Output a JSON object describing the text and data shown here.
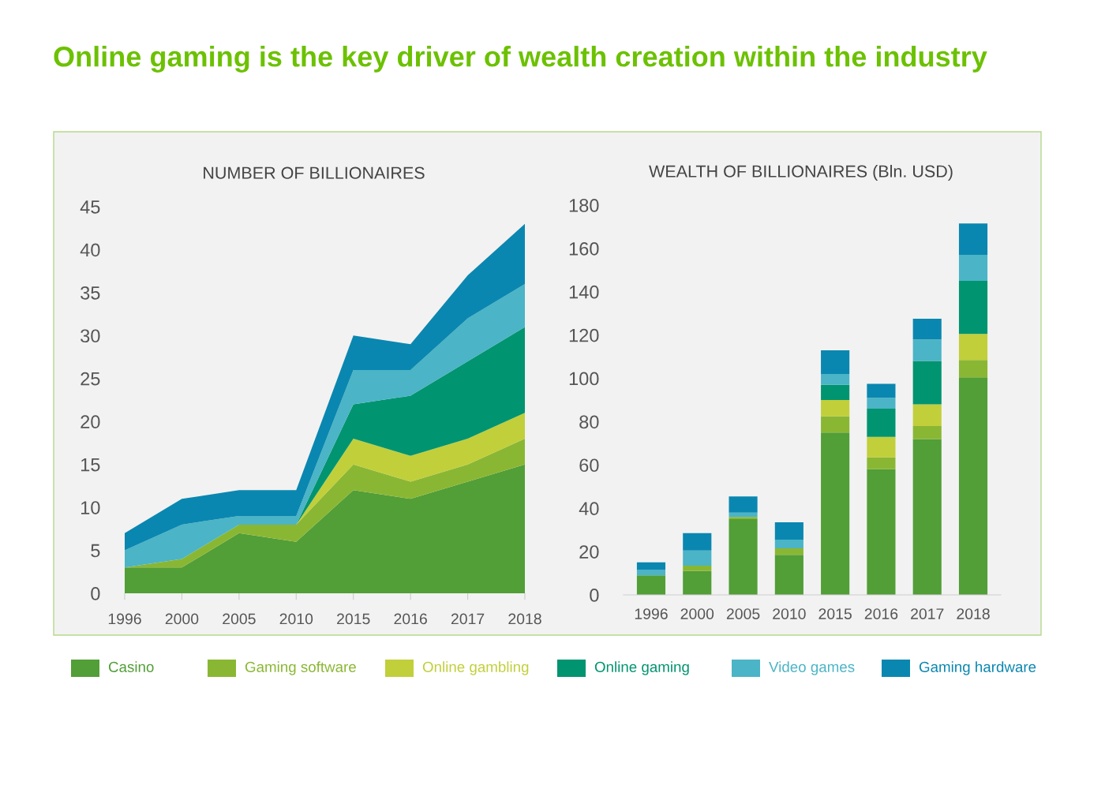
{
  "chart_data": [
    {
      "type": "area",
      "title": "NUMBER OF BILLIONAIRES",
      "stacked": true,
      "categories": [
        "1996",
        "2000",
        "2005",
        "2010",
        "2015",
        "2016",
        "2017",
        "2018"
      ],
      "ylim": [
        0,
        45
      ],
      "yticks": [
        0,
        5,
        10,
        15,
        20,
        25,
        30,
        35,
        40,
        45
      ],
      "grid": false,
      "legend": "bottom",
      "series": [
        {
          "name": "Casino",
          "color": "#529e37",
          "values": [
            3,
            3,
            7,
            6,
            12,
            11,
            13,
            15
          ]
        },
        {
          "name": "Gaming software",
          "color": "#8ab733",
          "values": [
            0,
            1,
            1,
            2,
            3,
            2,
            2,
            3
          ]
        },
        {
          "name": "Online gambling",
          "color": "#c1cf3a",
          "values": [
            0,
            0,
            0,
            0,
            3,
            3,
            3,
            3
          ]
        },
        {
          "name": "Online gaming",
          "color": "#009470",
          "values": [
            0,
            0,
            0,
            0,
            4,
            7,
            9,
            10
          ]
        },
        {
          "name": "Video games",
          "color": "#4bb4c6",
          "values": [
            2,
            4,
            1,
            1,
            4,
            3,
            5,
            5
          ]
        },
        {
          "name": "Gaming hardware",
          "color": "#0a87b0",
          "values": [
            2,
            3,
            3,
            3,
            4,
            3,
            5,
            7
          ]
        }
      ]
    },
    {
      "type": "bar",
      "title": "WEALTH OF BILLIONAIRES (Bln. USD)",
      "stacked": true,
      "categories": [
        "1996",
        "2000",
        "2005",
        "2010",
        "2015",
        "2016",
        "2017",
        "2018"
      ],
      "ylim": [
        0,
        180
      ],
      "yticks": [
        0,
        20,
        40,
        60,
        80,
        100,
        120,
        140,
        160,
        180
      ],
      "grid": false,
      "series": [
        {
          "color": "#529e37",
          "values": [
            9,
            11,
            35,
            18.5,
            75,
            58,
            72,
            100.5
          ]
        },
        {
          "color": "#8ab733",
          "values": [
            0,
            2.5,
            1,
            3,
            7.5,
            5.5,
            6,
            8
          ]
        },
        {
          "color": "#c1cf3a",
          "values": [
            0,
            0,
            0,
            0,
            7.5,
            9.5,
            10,
            12
          ]
        },
        {
          "color": "#009470",
          "values": [
            0,
            0,
            0,
            0,
            7,
            13,
            20,
            24.5
          ]
        },
        {
          "color": "#4bb4c6",
          "values": [
            2.5,
            7,
            2,
            4,
            5,
            5,
            10,
            12
          ]
        },
        {
          "color": "#0a87b0",
          "values": [
            3.5,
            8,
            7.5,
            8,
            11,
            6.5,
            9.5,
            14.5
          ]
        }
      ]
    },
    {
      "type": "other",
      "title": "Online gaming is the key driver of wealth creation within the industry"
    }
  ]
}
